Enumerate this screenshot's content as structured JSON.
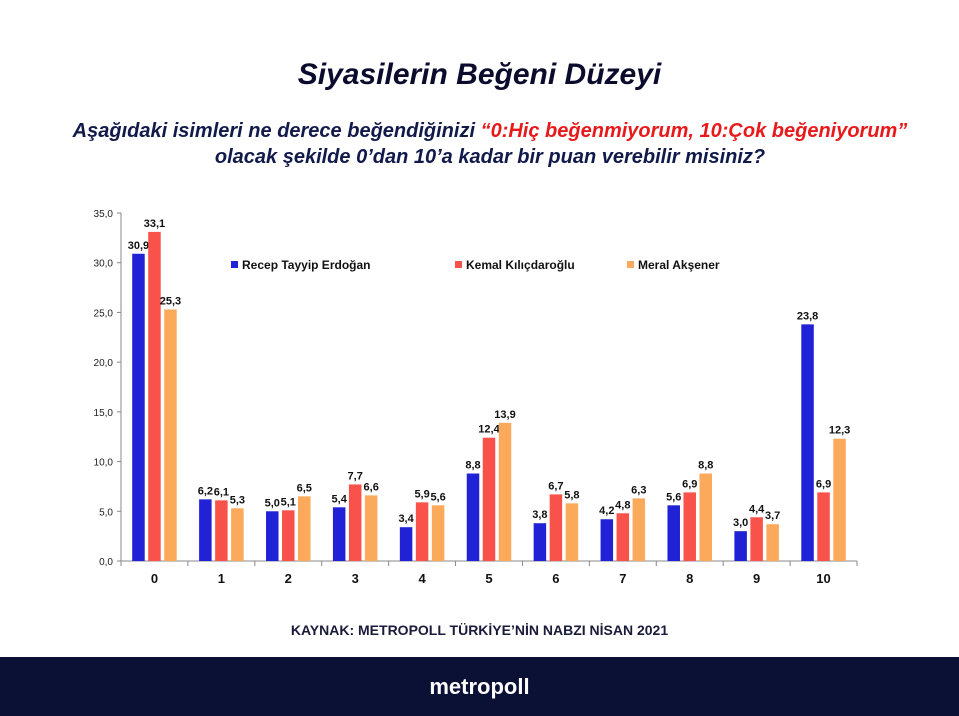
{
  "header": {
    "title": "Siyasilerin Beğeni Düzeyi",
    "question_part1": "Aşağıdaki isimleri ne derece beğendiğinizi ",
    "question_scale": "“0:Hiç beğenmiyorum, 10:Çok beğeniyorum”",
    "question_part2": " olacak şekilde 0’dan 10’a kadar bir puan verebilir misiniz?"
  },
  "source": "KAYNAK: METROPOLL TÜRKİYE’NİN NABZI NİSAN 2021",
  "footer": {
    "brand": "metropoll"
  },
  "chart_data": {
    "type": "bar",
    "title": "Siyasilerin Beğeni Düzeyi",
    "xlabel": "",
    "ylabel": "",
    "categories": [
      "0",
      "1",
      "2",
      "3",
      "4",
      "5",
      "6",
      "7",
      "8",
      "9",
      "10"
    ],
    "ylim": [
      0,
      35
    ],
    "yticks": [
      "0,0",
      "5,0",
      "10,0",
      "15,0",
      "20,0",
      "25,0",
      "30,0",
      "35,0"
    ],
    "ytick_values": [
      0,
      5,
      10,
      15,
      20,
      25,
      30,
      35
    ],
    "grid": false,
    "legend_position": "top-center",
    "series": [
      {
        "name": "Recep Tayyip Erdoğan",
        "color": "#2121d6",
        "values": [
          30.9,
          6.2,
          5.0,
          5.4,
          3.4,
          8.8,
          3.8,
          4.2,
          5.6,
          3.0,
          23.8
        ]
      },
      {
        "name": "Kemal Kılıçdaroğlu",
        "color": "#f9524a",
        "values": [
          33.1,
          6.1,
          5.1,
          7.7,
          5.9,
          12.4,
          6.7,
          4.8,
          6.9,
          4.4,
          6.9
        ]
      },
      {
        "name": "Meral Akşener",
        "color": "#fba95a",
        "values": [
          25.3,
          5.3,
          6.5,
          6.6,
          5.6,
          13.9,
          5.8,
          6.3,
          8.8,
          3.7,
          12.3
        ]
      }
    ]
  }
}
